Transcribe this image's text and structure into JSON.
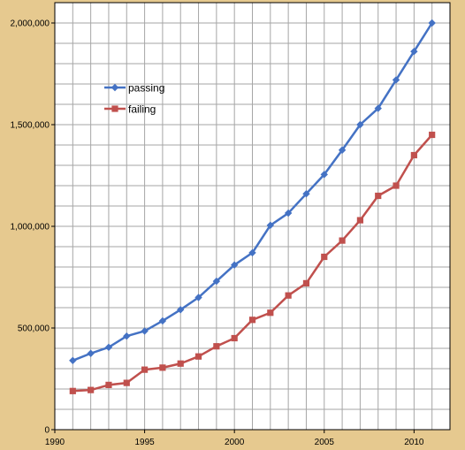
{
  "chart_data": {
    "type": "line",
    "x": [
      1991,
      1992,
      1993,
      1994,
      1995,
      1996,
      1997,
      1998,
      1999,
      2000,
      2001,
      2002,
      2003,
      2004,
      2005,
      2006,
      2007,
      2008,
      2009,
      2010,
      2011
    ],
    "series": [
      {
        "name": "passing",
        "color": "#4472c4",
        "marker": "diamond",
        "values": [
          340000,
          375000,
          405000,
          460000,
          485000,
          535000,
          590000,
          650000,
          730000,
          810000,
          870000,
          1005000,
          1065000,
          1160000,
          1255000,
          1375000,
          1500000,
          1580000,
          1720000,
          1860000,
          2000000
        ]
      },
      {
        "name": "failing",
        "color": "#c0504d",
        "marker": "square",
        "values": [
          190000,
          195000,
          220000,
          230000,
          295000,
          305000,
          325000,
          360000,
          410000,
          450000,
          540000,
          575000,
          660000,
          720000,
          850000,
          930000,
          1030000,
          1150000,
          1200000,
          1350000,
          1450000
        ]
      }
    ],
    "xlim": [
      1990,
      2012
    ],
    "ylim": [
      0,
      2100000
    ],
    "x_ticks": [
      1990,
      1995,
      2000,
      2005,
      2010
    ],
    "x_tick_labels": [
      "1990",
      "1995",
      "2000",
      "2005",
      "2010"
    ],
    "y_ticks": [
      0,
      500000,
      1000000,
      1500000,
      2000000
    ],
    "y_tick_labels": [
      "0",
      "500,000",
      "1,000,000",
      "1,500,000",
      "2,000,000"
    ],
    "grid": true,
    "legend_position": "top-left",
    "title": "",
    "xlabel": "",
    "ylabel": ""
  }
}
